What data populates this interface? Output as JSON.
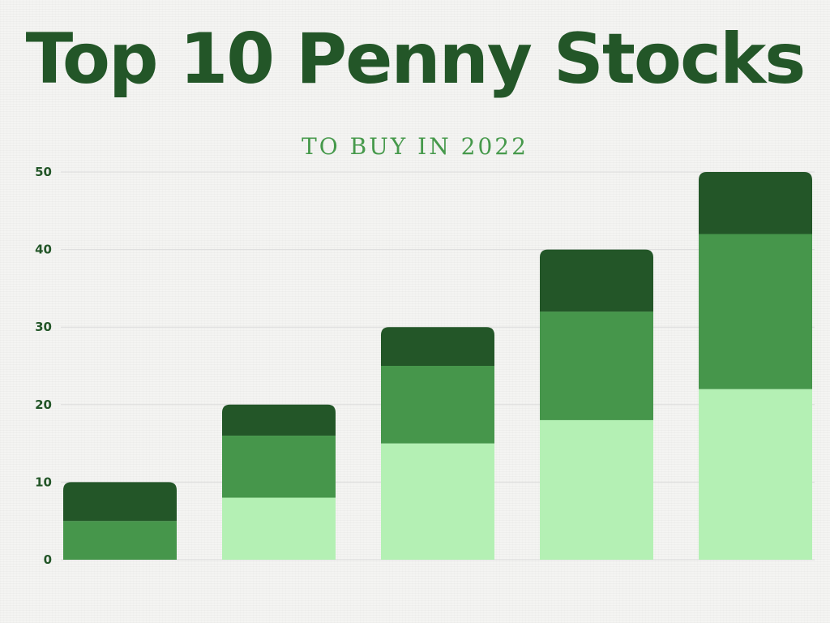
{
  "title": "Top 10 Penny Stocks",
  "subtitle": "TO BUY IN 2022",
  "colors": {
    "title": "#235628",
    "subtitle": "#46994b",
    "tick_labels": "#235628",
    "gridline": "#dcdcdc",
    "background": "#f4f4f2",
    "segment_bottom": "#b4f0b4",
    "segment_middle": "#46964b",
    "segment_top": "#235628"
  },
  "chart_data": {
    "type": "bar",
    "stacked": true,
    "title": "Top 10 Penny Stocks",
    "subtitle": "TO BUY IN 2022",
    "xlabel": "",
    "ylabel": "",
    "ylim": [
      0,
      50
    ],
    "yticks": [
      0,
      10,
      20,
      30,
      40,
      50
    ],
    "grid": true,
    "legend": "none",
    "categories": [
      "",
      "",
      "",
      "",
      ""
    ],
    "series": [
      {
        "values": [
          0,
          8,
          15,
          18,
          22
        ],
        "color": "#b4f0b4"
      },
      {
        "values": [
          5,
          8,
          10,
          14,
          20
        ],
        "color": "#46964b"
      },
      {
        "values": [
          5,
          4,
          5,
          8,
          8
        ],
        "color": "#235628"
      }
    ]
  }
}
